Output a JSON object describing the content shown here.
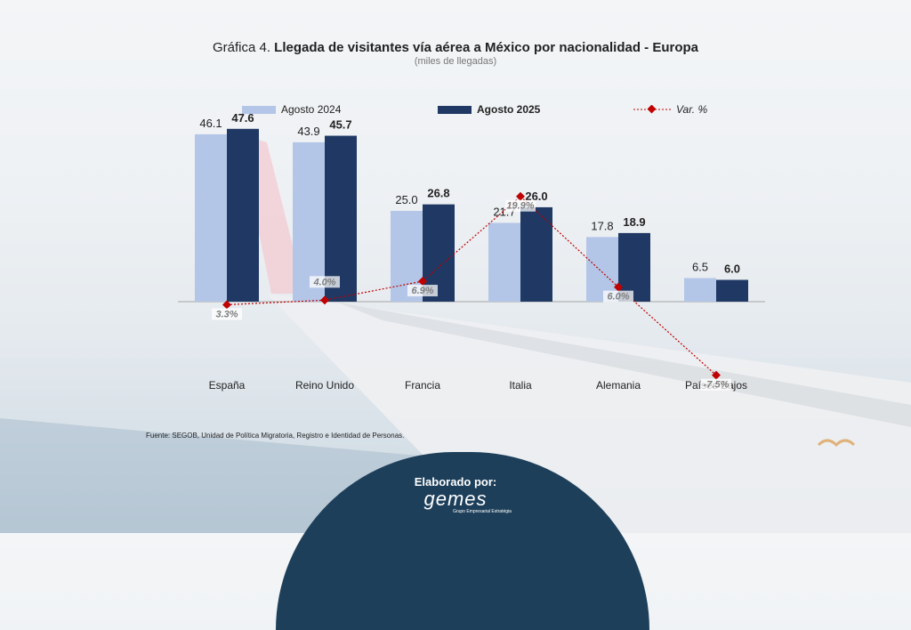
{
  "title_prefix": "Gráfica 4.",
  "title_main": "Llegada de visitantes vía aérea a México por nacionalidad - Europa",
  "subtitle": "(miles de llegadas)",
  "legend": {
    "series1": "Agosto 2024",
    "series2": "Agosto 2025",
    "line": "Var. %"
  },
  "colors": {
    "series1": "#b4c6e7",
    "series2": "#1f3864",
    "line": "#c00000"
  },
  "chart_data": {
    "type": "bar",
    "categories": [
      "España",
      "Reino Unido",
      "Francia",
      "Italia",
      "Alemania",
      "Países Bajos"
    ],
    "series": [
      {
        "name": "Agosto 2024",
        "values": [
          46.1,
          43.9,
          25.0,
          21.7,
          17.8,
          6.5
        ],
        "labels": [
          "46.1",
          "43.9",
          "25.0",
          "21.7",
          "17.8",
          "6.5"
        ]
      },
      {
        "name": "Agosto 2025",
        "values": [
          47.6,
          45.7,
          26.8,
          26.0,
          18.9,
          6.0
        ],
        "labels": [
          "47.6",
          "45.7",
          "26.8",
          "26.0",
          "18.9",
          "6.0"
        ]
      }
    ],
    "line_series": {
      "name": "Var. %",
      "values": [
        3.3,
        4.0,
        6.9,
        19.9,
        6.0,
        -7.5
      ],
      "labels": [
        "3.3%",
        "4.0%",
        "6.9%",
        "19.9%",
        "6.0%",
        "-7.5%"
      ]
    },
    "ylim": [
      0,
      50
    ],
    "line_ylim": [
      -10,
      20
    ]
  },
  "source": "Fuente: SEGOB, Unidad de Política Migratoria, Registro e Identidad de Personas.",
  "badge": {
    "label": "Elaborado por:",
    "logo": "gemes",
    "logo_sub": "Grupo Empresarial Estratégia"
  }
}
